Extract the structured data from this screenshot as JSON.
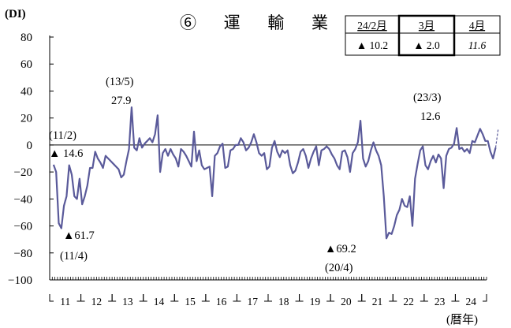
{
  "chart_data": {
    "type": "line",
    "title": "⑥ 運 輸 業",
    "ylabel": "(DI)",
    "xlabel": "(暦年)",
    "ylim": [
      -100,
      80
    ],
    "yticks": [
      80,
      60,
      40,
      20,
      0,
      -20,
      -40,
      -60,
      -80,
      -100
    ],
    "ytick_labels": [
      "80",
      "60",
      "40",
      "20",
      "0",
      "-20",
      "-40",
      "-60",
      "-80",
      "-100"
    ],
    "x_labels": [
      "11",
      "12",
      "13",
      "14",
      "15",
      "16",
      "17",
      "18",
      "19",
      "20",
      "21",
      "22",
      "23",
      "24"
    ],
    "x_start_year": 2011,
    "grid": false,
    "zero_line": true,
    "line_color": "#5a5a9a",
    "series": [
      {
        "name": "",
        "values": [
          -14.6,
          -20,
          -58,
          -61.7,
          -45,
          -38,
          -15,
          -22,
          -38,
          -40,
          -25,
          -44,
          -38,
          -30,
          -17,
          -17,
          -5,
          -10,
          -13,
          -17,
          -8,
          -10,
          -12,
          -14,
          -16,
          -18,
          -24,
          -22,
          -12,
          -3,
          27.9,
          -2,
          -4,
          5,
          -2,
          1,
          3,
          5,
          2,
          8,
          22,
          -20,
          -6,
          -3,
          -8,
          -3,
          -7,
          -10,
          -16,
          -3,
          -5,
          -8,
          -12,
          -16,
          10,
          -12,
          -4,
          -15,
          -18,
          -17,
          -16,
          -38,
          -8,
          -6,
          -1,
          1,
          -17,
          -16,
          -4,
          -3,
          0,
          0,
          5,
          2,
          -4,
          -2,
          2,
          8,
          2,
          -6,
          -8,
          -6,
          -18,
          -16,
          -2,
          3,
          -5,
          -9,
          -4,
          -6,
          -4,
          -15,
          -21,
          -19,
          -13,
          -5,
          -3,
          -8,
          -17,
          -10,
          -5,
          -1,
          -15,
          -4,
          -3,
          -1,
          -3,
          -7,
          -10,
          -15,
          -18,
          -5,
          -4,
          -9,
          -20,
          -6,
          -3,
          2,
          18,
          -10,
          -16,
          -12,
          -4,
          2,
          -4,
          -8,
          -15,
          -38,
          -69.2,
          -65,
          -66,
          -60,
          -52,
          -48,
          -40,
          -45,
          -46,
          -38,
          -60,
          -25,
          -14,
          -4,
          -1,
          -15,
          -18,
          -12,
          -8,
          -13,
          -7,
          -10,
          -32,
          -8,
          -3,
          -2,
          1,
          12.6,
          -3,
          -2,
          -5,
          -3,
          -6,
          3,
          2,
          7,
          12,
          8,
          3,
          3,
          -5,
          -10,
          -2
        ],
        "dashed_tail": [
          -2,
          12
        ]
      }
    ],
    "annotations": [
      {
        "date": "(11/2)",
        "value": "▲ 14.6"
      },
      {
        "value": "▲61.7",
        "date": "(11/4)"
      },
      {
        "date": "(13/5)",
        "value": "27.9"
      },
      {
        "value": "▲69.2",
        "date": "(20/4)"
      },
      {
        "date": "(23/3)",
        "value": "12.6"
      }
    ],
    "legend_table": {
      "headers": [
        "24/2月",
        "3月",
        "4月"
      ],
      "values": [
        "▲ 10.2",
        "▲ 2.0",
        "11.6"
      ]
    }
  }
}
